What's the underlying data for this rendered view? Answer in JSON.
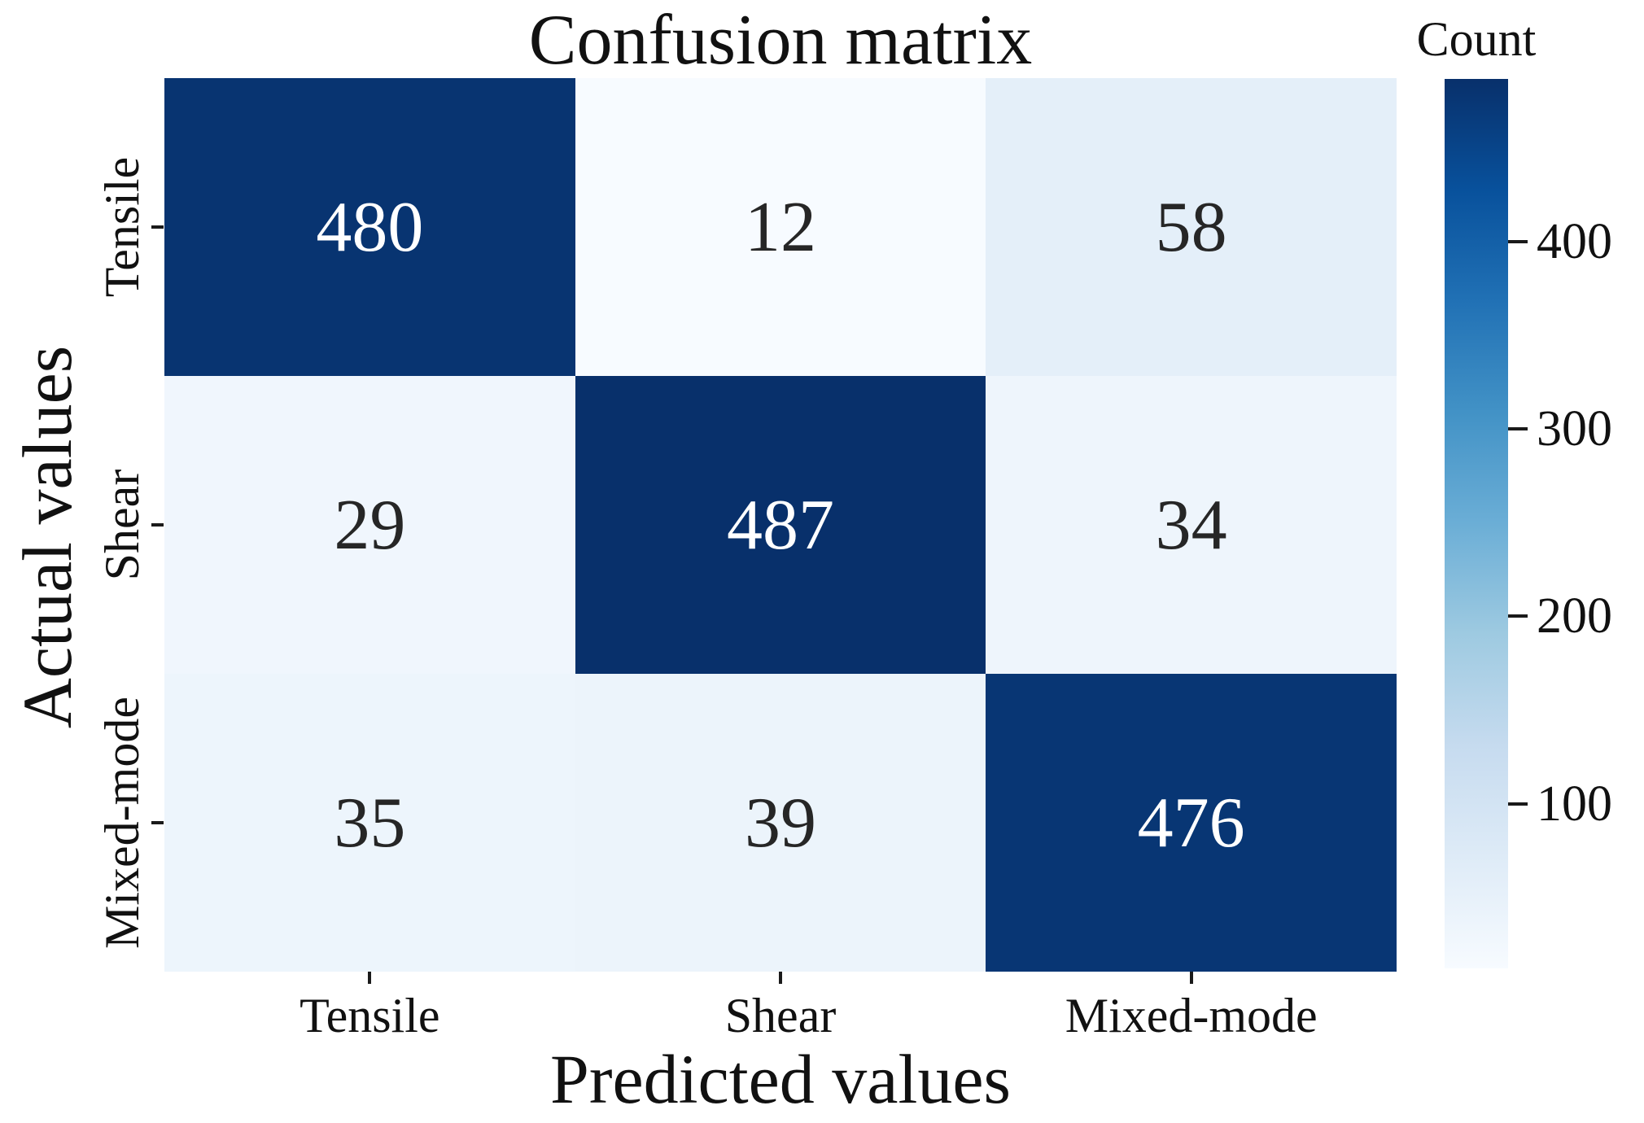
{
  "figure": {
    "background": "#ffffff"
  },
  "chart_data": {
    "type": "heatmap",
    "title": "Confusion matrix",
    "xlabel": "Predicted values",
    "ylabel": "Actual values",
    "x_categories": [
      "Tensile",
      "Shear",
      "Mixed-mode"
    ],
    "y_categories": [
      "Tensile",
      "Shear",
      "Mixed-mode"
    ],
    "values": [
      [
        480,
        12,
        58
      ],
      [
        29,
        487,
        34
      ],
      [
        35,
        39,
        476
      ]
    ],
    "vmin": 12,
    "vmax": 487,
    "colorbar": {
      "label": "Count",
      "ticks": [
        400,
        300,
        200,
        100
      ]
    },
    "colormap_name": "Blues",
    "colormap_stops": [
      "#f7fbff",
      "#deebf7",
      "#c6dbef",
      "#9ecae1",
      "#6baed6",
      "#4292c6",
      "#2171b5",
      "#08519c",
      "#08306b"
    ],
    "annotation_colors": {
      "light_text": "#ffffff",
      "dark_text": "#262626"
    },
    "tick_color": "#1a1a1a",
    "grid": false,
    "legend_position": "right-colorbar"
  }
}
